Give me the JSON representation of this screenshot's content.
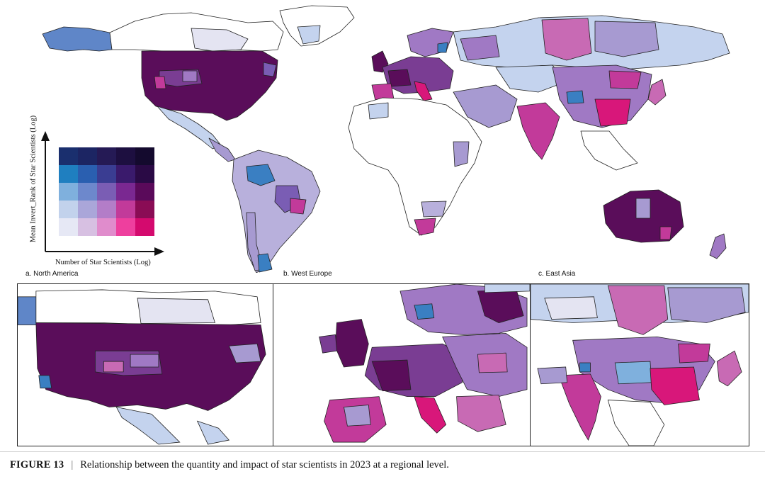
{
  "legend": {
    "y_axis_label": "Mean Invert_Rank of Star Scientists (Log)",
    "x_axis_label": "Number of Star Scientists (Log)",
    "colors": [
      [
        "#1a2f6e",
        "#1c2563",
        "#251a55",
        "#1d0f40",
        "#140a2e"
      ],
      [
        "#1f7fc0",
        "#2a5fb0",
        "#3a3d92",
        "#3a1a6c",
        "#2a0a45"
      ],
      [
        "#7fb0dd",
        "#6d88cc",
        "#7a5db4",
        "#7a2891",
        "#5a0a5a"
      ],
      [
        "#c2d2ec",
        "#aaa6d9",
        "#b37dc8",
        "#c23a9a",
        "#8a0c55"
      ],
      [
        "#e6e8f5",
        "#d7c0e2",
        "#e08ccc",
        "#ee3f9e",
        "#d40a6e"
      ]
    ]
  },
  "panels": {
    "a": "a. North America",
    "b": "b. West Europe",
    "c": "c. East Asia"
  },
  "caption": {
    "label": "FIGURE 13",
    "separator": "|",
    "text": "Relationship between the quantity and impact of star scientists in 2023 at a regional level."
  },
  "colors": {
    "dark_purple": "#5a0d5a",
    "purple": "#7a3d93",
    "lavender": "#a79ad1",
    "light_blue": "#c4d3ee",
    "blue": "#3a7fc2",
    "pink": "#c23a9a",
    "magenta": "#d8177a"
  }
}
